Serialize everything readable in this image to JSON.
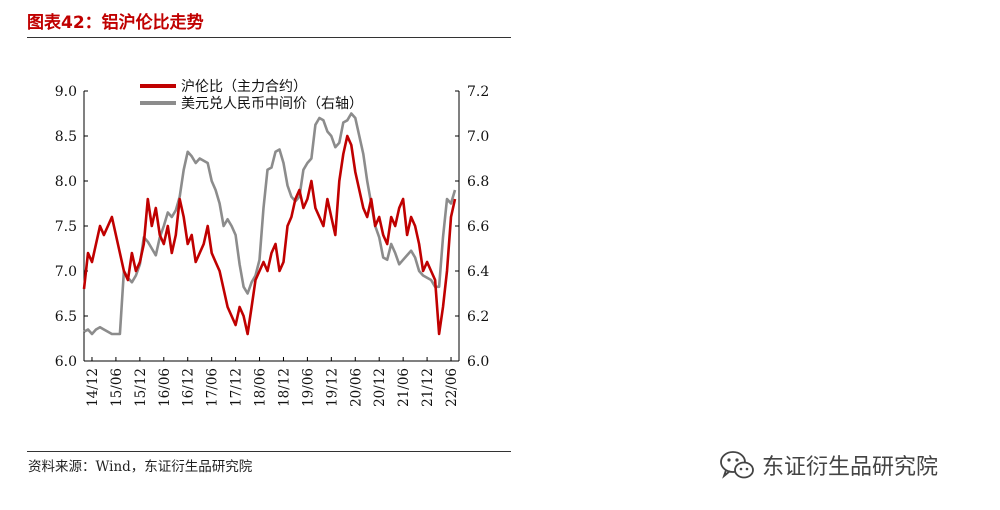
{
  "figure_title": "图表42：铝沪伦比走势",
  "source_text": "资料来源：Wind，东证衍生品研究院",
  "watermark_text": "东证衍生品研究院",
  "watermark_icon": "wechat-icon",
  "chart_data": {
    "type": "line",
    "x_tick_labels": [
      "14/12",
      "15/06",
      "15/12",
      "16/06",
      "16/12",
      "17/06",
      "17/12",
      "18/06",
      "18/12",
      "19/06",
      "19/12",
      "20/06",
      "20/12",
      "21/06",
      "21/12",
      "22/06"
    ],
    "x_range": [
      "2014-10",
      "2022-08"
    ],
    "y_left": {
      "range": [
        6.0,
        9.0
      ],
      "ticks": [
        "6.0",
        "6.5",
        "7.0",
        "7.5",
        "8.0",
        "8.5",
        "9.0"
      ]
    },
    "y_right": {
      "range": [
        6.0,
        7.2
      ],
      "ticks": [
        "6.0",
        "6.2",
        "6.4",
        "6.6",
        "6.8",
        "7.0",
        "7.2"
      ]
    },
    "grid": false,
    "legend_position": "top-center",
    "series": [
      {
        "name": "沪伦比（主力合约）",
        "axis": "left",
        "color": "#c00000",
        "x": [
          "2014-10",
          "2014-11",
          "2014-12",
          "2015-01",
          "2015-02",
          "2015-03",
          "2015-04",
          "2015-05",
          "2015-06",
          "2015-07",
          "2015-08",
          "2015-09",
          "2015-10",
          "2015-11",
          "2015-12",
          "2016-01",
          "2016-02",
          "2016-03",
          "2016-04",
          "2016-05",
          "2016-06",
          "2016-07",
          "2016-08",
          "2016-09",
          "2016-10",
          "2016-11",
          "2016-12",
          "2017-01",
          "2017-02",
          "2017-03",
          "2017-04",
          "2017-05",
          "2017-06",
          "2017-07",
          "2017-08",
          "2017-09",
          "2017-10",
          "2017-11",
          "2017-12",
          "2018-01",
          "2018-02",
          "2018-03",
          "2018-04",
          "2018-05",
          "2018-06",
          "2018-07",
          "2018-08",
          "2018-09",
          "2018-10",
          "2018-11",
          "2018-12",
          "2019-01",
          "2019-02",
          "2019-03",
          "2019-04",
          "2019-05",
          "2019-06",
          "2019-07",
          "2019-08",
          "2019-09",
          "2019-10",
          "2019-11",
          "2019-12",
          "2020-01",
          "2020-02",
          "2020-03",
          "2020-04",
          "2020-05",
          "2020-06",
          "2020-07",
          "2020-08",
          "2020-09",
          "2020-10",
          "2020-11",
          "2020-12",
          "2021-01",
          "2021-02",
          "2021-03",
          "2021-04",
          "2021-05",
          "2021-06",
          "2021-07",
          "2021-08",
          "2021-09",
          "2021-10",
          "2021-11",
          "2021-12",
          "2022-01",
          "2022-02",
          "2022-03",
          "2022-04",
          "2022-05",
          "2022-06",
          "2022-07"
        ],
        "y": [
          6.8,
          7.2,
          7.1,
          7.3,
          7.5,
          7.4,
          7.5,
          7.6,
          7.4,
          7.2,
          7.0,
          6.9,
          7.2,
          7.0,
          7.1,
          7.3,
          7.8,
          7.5,
          7.7,
          7.4,
          7.3,
          7.5,
          7.2,
          7.4,
          7.8,
          7.6,
          7.3,
          7.4,
          7.1,
          7.2,
          7.3,
          7.5,
          7.2,
          7.1,
          7.0,
          6.8,
          6.6,
          6.5,
          6.4,
          6.6,
          6.5,
          6.3,
          6.6,
          6.9,
          7.0,
          7.1,
          7.0,
          7.2,
          7.3,
          7.0,
          7.1,
          7.5,
          7.6,
          7.8,
          7.9,
          7.7,
          7.8,
          8.0,
          7.7,
          7.6,
          7.5,
          7.8,
          7.6,
          7.4,
          8.0,
          8.3,
          8.5,
          8.4,
          8.1,
          7.9,
          7.7,
          7.6,
          7.8,
          7.5,
          7.6,
          7.4,
          7.3,
          7.6,
          7.5,
          7.7,
          7.8,
          7.4,
          7.6,
          7.5,
          7.3,
          7.0,
          7.1,
          7.0,
          6.9,
          6.3,
          6.6,
          7.0,
          7.6,
          7.8
        ]
      },
      {
        "name": "美元兑人民币中间价（右轴）",
        "axis": "right",
        "color": "#8c8c8c",
        "x": [
          "2014-10",
          "2014-11",
          "2014-12",
          "2015-01",
          "2015-02",
          "2015-03",
          "2015-04",
          "2015-05",
          "2015-06",
          "2015-07",
          "2015-08",
          "2015-09",
          "2015-10",
          "2015-11",
          "2015-12",
          "2016-01",
          "2016-02",
          "2016-03",
          "2016-04",
          "2016-05",
          "2016-06",
          "2016-07",
          "2016-08",
          "2016-09",
          "2016-10",
          "2016-11",
          "2016-12",
          "2017-01",
          "2017-02",
          "2017-03",
          "2017-04",
          "2017-05",
          "2017-06",
          "2017-07",
          "2017-08",
          "2017-09",
          "2017-10",
          "2017-11",
          "2017-12",
          "2018-01",
          "2018-02",
          "2018-03",
          "2018-04",
          "2018-05",
          "2018-06",
          "2018-07",
          "2018-08",
          "2018-09",
          "2018-10",
          "2018-11",
          "2018-12",
          "2019-01",
          "2019-02",
          "2019-03",
          "2019-04",
          "2019-05",
          "2019-06",
          "2019-07",
          "2019-08",
          "2019-09",
          "2019-10",
          "2019-11",
          "2019-12",
          "2020-01",
          "2020-02",
          "2020-03",
          "2020-04",
          "2020-05",
          "2020-06",
          "2020-07",
          "2020-08",
          "2020-09",
          "2020-10",
          "2020-11",
          "2020-12",
          "2021-01",
          "2021-02",
          "2021-03",
          "2021-04",
          "2021-05",
          "2021-06",
          "2021-07",
          "2021-08",
          "2021-09",
          "2021-10",
          "2021-11",
          "2021-12",
          "2022-01",
          "2022-02",
          "2022-03",
          "2022-04",
          "2022-05",
          "2022-06",
          "2022-07"
        ],
        "y": [
          6.13,
          6.14,
          6.12,
          6.14,
          6.15,
          6.14,
          6.13,
          6.12,
          6.12,
          6.12,
          6.4,
          6.37,
          6.35,
          6.38,
          6.43,
          6.55,
          6.53,
          6.5,
          6.47,
          6.55,
          6.6,
          6.66,
          6.64,
          6.67,
          6.73,
          6.85,
          6.93,
          6.91,
          6.88,
          6.9,
          6.89,
          6.88,
          6.8,
          6.76,
          6.7,
          6.6,
          6.63,
          6.6,
          6.56,
          6.43,
          6.33,
          6.3,
          6.35,
          6.38,
          6.45,
          6.68,
          6.85,
          6.86,
          6.93,
          6.94,
          6.88,
          6.78,
          6.73,
          6.71,
          6.73,
          6.85,
          6.88,
          6.9,
          7.05,
          7.08,
          7.07,
          7.02,
          7.0,
          6.95,
          6.97,
          7.06,
          7.07,
          7.1,
          7.08,
          7.0,
          6.92,
          6.8,
          6.7,
          6.6,
          6.55,
          6.46,
          6.45,
          6.52,
          6.48,
          6.43,
          6.45,
          6.47,
          6.49,
          6.46,
          6.4,
          6.38,
          6.37,
          6.36,
          6.33,
          6.33,
          6.55,
          6.72,
          6.7,
          6.76
        ]
      }
    ]
  }
}
